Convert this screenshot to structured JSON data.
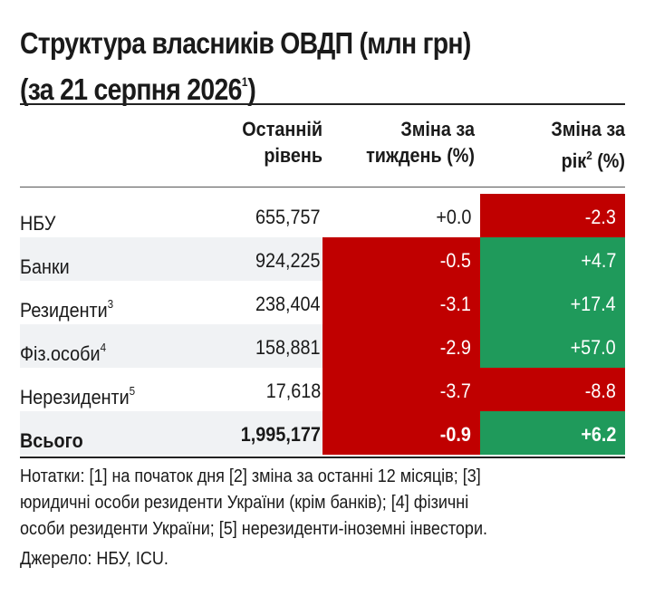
{
  "title": {
    "line1": "Структура власників ОВДП (млн грн)",
    "line2": "(за 21 серпня 2026",
    "line2_sup": "1",
    "line2_end": ")"
  },
  "headers": {
    "level_line1": "Останній",
    "level_line2": "рівень",
    "week_line1": "Зміна за",
    "week_line2": "тиждень (%)",
    "year_line1": "Зміна за",
    "year_line2_a": "рік",
    "year_line2_sup": "2",
    "year_line2_b": " (%)"
  },
  "rows": [
    {
      "label": "НБУ",
      "sup": "",
      "level": "655,757",
      "week": "+0.0",
      "year": "-2.3"
    },
    {
      "label": "Банки",
      "sup": "",
      "level": "924,225",
      "week": "-0.5",
      "year": "+4.7"
    },
    {
      "label": "Резиденти",
      "sup": "3",
      "level": "238,404",
      "week": "-3.1",
      "year": "+17.4"
    },
    {
      "label": "Фіз.особи",
      "sup": "4",
      "level": "158,881",
      "week": "-2.9",
      "year": "+57.0"
    },
    {
      "label": "Нерезиденти",
      "sup": "5",
      "level": "17,618",
      "week": "-3.7",
      "year": "-8.8"
    },
    {
      "label": "Всього",
      "sup": "",
      "level": "1,995,177",
      "week": "-0.9",
      "year": "+6.2"
    }
  ],
  "colors": {
    "negative": "#c00000",
    "positive": "#1f9a5b"
  },
  "notes": {
    "line1": "Нотатки: [1] на початок дня [2] зміна за останні 12 місяців; [3]",
    "line2": "юридичні особи  резиденти України (крім банків); [4] фізичні",
    "line3": "особи резиденти України; [5] нерезиденти-іноземні інвестори."
  },
  "source": "Джерело: НБУ, ICU."
}
